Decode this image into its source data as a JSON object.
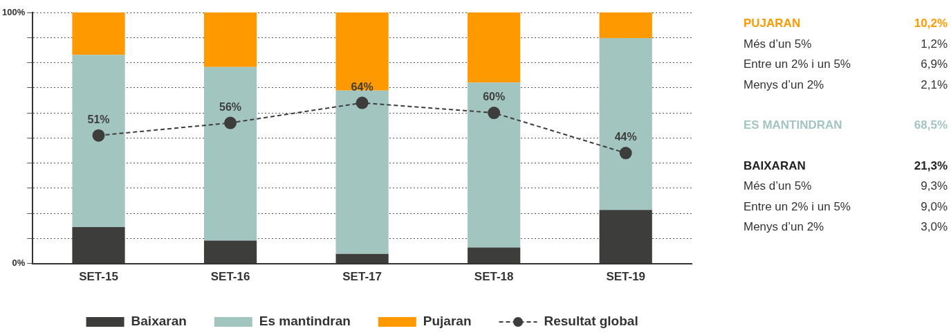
{
  "chart_data": {
    "type": "bar",
    "stacked": true,
    "categories": [
      "SET-15",
      "SET-16",
      "SET-17",
      "SET-18",
      "SET-19"
    ],
    "series": [
      {
        "name": "Baixaran",
        "color": "#3d3d3b",
        "values": [
          14.5,
          9.1,
          3.8,
          6.4,
          21.3
        ]
      },
      {
        "name": "Es mantindran",
        "color": "#a3c5c0",
        "values": [
          68.6,
          69.2,
          65.1,
          65.7,
          68.5
        ]
      },
      {
        "name": "Pujaran",
        "color": "#ff9900",
        "values": [
          16.9,
          21.7,
          31.1,
          27.9,
          10.2
        ]
      },
      {
        "name": "Resultat global",
        "type": "line",
        "color": "#3d3d3b",
        "marker": "circle",
        "line_style": "dashed",
        "values": [
          51,
          56,
          64,
          60,
          44
        ],
        "value_labels": [
          "51%",
          "56%",
          "64%",
          "60%",
          "44%"
        ]
      }
    ],
    "ylim": [
      0,
      100
    ],
    "yticks": [
      {
        "value": 0,
        "label": "0%"
      },
      {
        "value": 10,
        "label": null
      },
      {
        "value": 20,
        "label": null
      },
      {
        "value": 30,
        "label": null
      },
      {
        "value": 40,
        "label": null
      },
      {
        "value": 50,
        "label": null
      },
      {
        "value": 60,
        "label": null
      },
      {
        "value": 70,
        "label": null
      },
      {
        "value": 80,
        "label": null
      },
      {
        "value": 90,
        "label": null
      },
      {
        "value": 100,
        "label": "100%"
      }
    ],
    "grid": "y",
    "legend": "bottom",
    "annotations": [
      "PUJARAN",
      "10,2%",
      "Més d’un 5%",
      "1,2%",
      "Entre un 2% i un 5%",
      "6,9%",
      "Menys d’un 2%",
      "2,1%",
      "ES MANTINDRAN",
      "68,5%",
      "BAIXARAN",
      "21,3%",
      "Més d’un 5%",
      "9,3%",
      "Entre un 2% i un 5%",
      "9,0%",
      "Menys d’un 2%",
      "3,0%"
    ]
  }
}
